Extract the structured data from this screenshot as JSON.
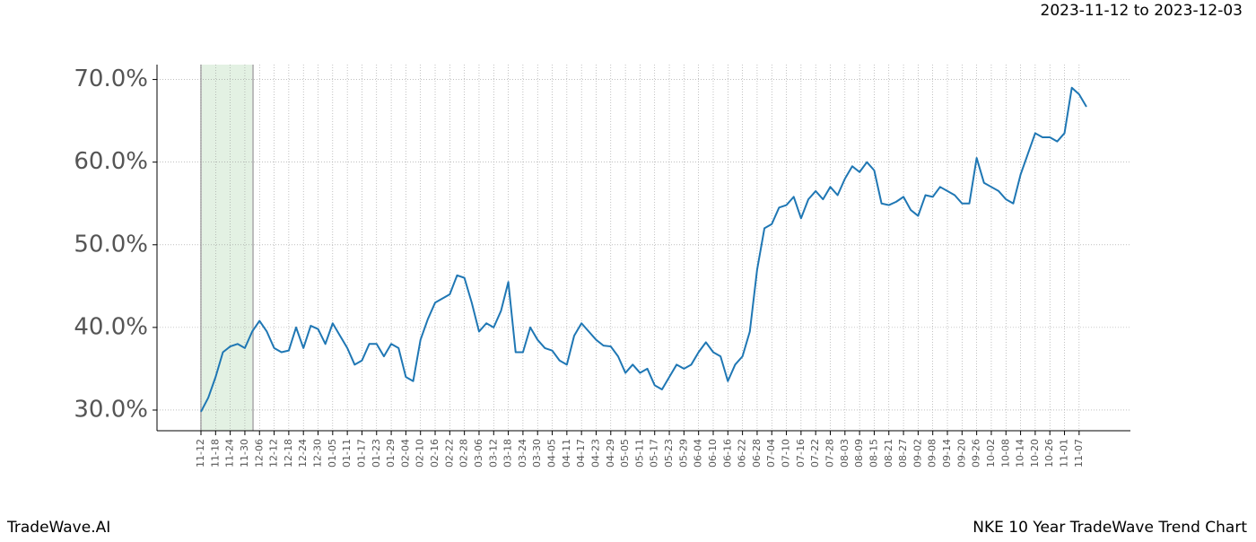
{
  "chart_data": {
    "type": "line",
    "title": "NKE 10 Year TradeWave Trend Chart",
    "date_range": "2023-11-12 to 2023-12-03",
    "brand": "TradeWave.AI",
    "color": "#1f77b4",
    "grid": true,
    "categories": [
      "11-12",
      null,
      "11-18",
      null,
      "11-24",
      null,
      "11-30",
      null,
      "12-06",
      null,
      "12-12",
      null,
      "12-18",
      null,
      "12-24",
      null,
      "12-30",
      null,
      "01-05",
      null,
      "01-11",
      null,
      "01-17",
      null,
      "01-23",
      null,
      "01-29",
      null,
      "02-04",
      null,
      "02-10",
      null,
      "02-16",
      null,
      "02-22",
      null,
      "02-28",
      null,
      "03-06",
      null,
      "03-12",
      null,
      "03-18",
      null,
      "03-24",
      null,
      "03-30",
      null,
      "04-05",
      null,
      "04-11",
      null,
      "04-17",
      null,
      "04-23",
      null,
      "04-29",
      null,
      "05-05",
      null,
      "05-11",
      null,
      "05-17",
      null,
      "05-23",
      null,
      "05-29",
      null,
      "06-04",
      null,
      "06-10",
      null,
      "06-16",
      null,
      "06-22",
      null,
      "06-28",
      null,
      "07-04",
      null,
      "07-10",
      null,
      "07-16",
      null,
      "07-22",
      null,
      "07-28",
      null,
      "08-03",
      null,
      "08-09",
      null,
      "08-15",
      null,
      "08-21",
      null,
      "08-27",
      null,
      "09-02",
      null,
      "09-08",
      null,
      "09-14",
      null,
      "09-20",
      null,
      "09-26",
      null,
      "10-02",
      null,
      "10-08",
      null,
      "10-14",
      null,
      "10-20",
      null,
      "10-26",
      null,
      "11-01",
      null,
      "11-07",
      null
    ],
    "values": [
      29.8,
      31.5,
      34,
      37,
      37.7,
      38,
      37.5,
      39.5,
      40.8,
      39.5,
      37.5,
      37,
      37.2,
      40,
      37.5,
      40.2,
      39.8,
      38,
      40.5,
      39,
      37.5,
      35.5,
      36,
      38,
      38,
      36.5,
      38,
      37.5,
      34,
      33.5,
      38.5,
      41,
      43,
      43.5,
      44,
      46.3,
      46,
      43,
      39.5,
      40.5,
      40,
      42,
      45.5,
      37,
      37,
      40,
      38.5,
      37.5,
      37.2,
      36,
      35.5,
      39,
      40.5,
      39.5,
      38.5,
      37.8,
      37.7,
      36.5,
      34.5,
      35.5,
      34.5,
      35,
      33,
      32.5,
      34,
      35.5,
      35,
      35.5,
      37,
      38.2,
      37,
      36.5,
      33.5,
      35.5,
      36.5,
      39.5,
      47,
      52,
      52.5,
      54.5,
      54.8,
      55.8,
      53.2,
      55.5,
      56.5,
      55.5,
      57,
      56,
      58,
      59.5,
      58.8,
      60,
      59,
      55,
      54.8,
      55.2,
      55.8,
      54.2,
      53.5,
      56,
      55.8,
      57,
      56.5,
      56,
      55,
      55,
      60.5,
      57.5,
      57,
      56.5,
      55.5,
      55,
      58.5,
      61,
      63.5,
      63,
      63,
      62.5,
      63.5,
      69,
      68.2,
      66.7
    ],
    "ylim": [
      27.5,
      71.8
    ],
    "yticks": [
      {
        "value": 30,
        "label": "30.0%"
      },
      {
        "value": 40,
        "label": "40.0%"
      },
      {
        "value": 50,
        "label": "50.0%"
      },
      {
        "value": 60,
        "label": "60.0%"
      },
      {
        "value": 70,
        "label": "70.0%"
      }
    ]
  }
}
